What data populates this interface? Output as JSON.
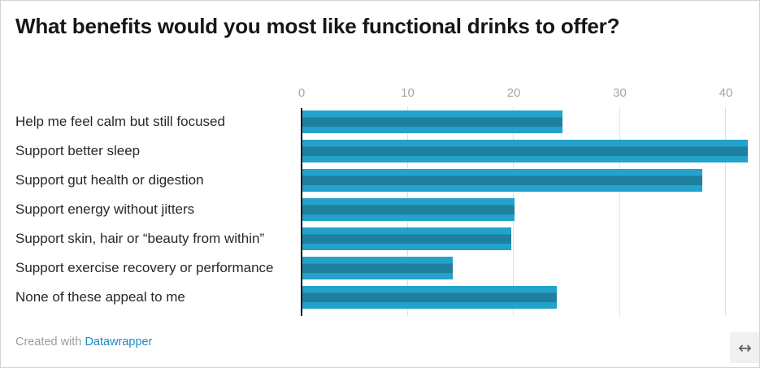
{
  "title": "What benefits would you most like functional drinks to offer?",
  "chart_data": {
    "type": "bar",
    "orientation": "horizontal",
    "categories": [
      "Help me feel calm but still focused",
      "Support better sleep",
      "Support gut health or digestion",
      "Support energy without jitters",
      "Support skin, hair or “beauty from within”",
      "Support exercise recovery or performance",
      "None of these appeal to me"
    ],
    "values": [
      24.5,
      42,
      37.7,
      20,
      19.7,
      14.2,
      24
    ],
    "x_ticks": [
      0,
      10,
      20,
      30,
      40
    ],
    "xlim": [
      0,
      43.3
    ],
    "grid": true,
    "legend": "none",
    "bar_color": "#23a2ca",
    "bar_stripe_color": "#1f7f9e",
    "axis_line_color": "#181818",
    "gridline_color": "#e0e0e0",
    "tick_label_color": "#a5a5a5"
  },
  "footer": {
    "credit_prefix": "Created with",
    "credit_link": "Datawrapper",
    "link_color": "#1d87c6"
  },
  "controls": {
    "resize_icon": "↔"
  }
}
